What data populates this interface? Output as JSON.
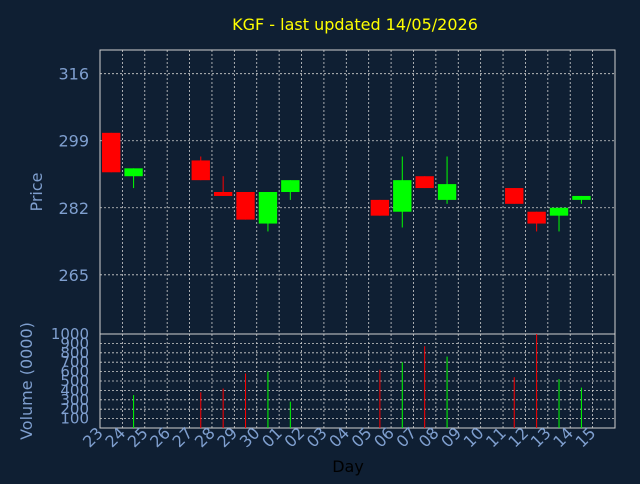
{
  "colors": {
    "background": "#0f1f33",
    "title": "#ffff00",
    "axis_text": "#7f9fcf",
    "day_label": "#000000",
    "grid": "#d0d0d0",
    "up": "#00ff00",
    "down": "#ff0000"
  },
  "chart_data": [
    {
      "type": "candlestick",
      "title": "KGF - last updated 14/05/2026",
      "ylabel": "Price",
      "ylim": [
        250,
        322
      ],
      "yticks": [
        265,
        282,
        299,
        316
      ],
      "grid": true,
      "x": [
        "23",
        "24",
        "25",
        "26",
        "27",
        "28",
        "29",
        "30",
        "01",
        "02",
        "03",
        "04",
        "05",
        "06",
        "07",
        "08",
        "09",
        "10",
        "11",
        "12",
        "13",
        "14",
        "15"
      ],
      "candles": [
        {
          "x": "23",
          "open": 301,
          "high": 301,
          "low": 291,
          "close": 291
        },
        {
          "x": "24",
          "open": 290,
          "high": 292,
          "low": 287,
          "close": 292
        },
        {
          "x": "27",
          "open": 294,
          "high": 295,
          "low": 289,
          "close": 289
        },
        {
          "x": "28",
          "open": 286,
          "high": 290,
          "low": 285,
          "close": 285
        },
        {
          "x": "29",
          "open": 286,
          "high": 286,
          "low": 279,
          "close": 279
        },
        {
          "x": "30",
          "open": 278,
          "high": 286,
          "low": 276,
          "close": 286
        },
        {
          "x": "01",
          "open": 286,
          "high": 289,
          "low": 284,
          "close": 289
        },
        {
          "x": "05",
          "open": 284,
          "high": 284,
          "low": 280,
          "close": 280
        },
        {
          "x": "06",
          "open": 281,
          "high": 295,
          "low": 277,
          "close": 289
        },
        {
          "x": "07",
          "open": 290,
          "high": 290,
          "low": 287,
          "close": 287
        },
        {
          "x": "08",
          "open": 284,
          "high": 295,
          "low": 283,
          "close": 288
        },
        {
          "x": "11",
          "open": 287,
          "high": 287,
          "low": 283,
          "close": 283
        },
        {
          "x": "12",
          "open": 281,
          "high": 281,
          "low": 276,
          "close": 278
        },
        {
          "x": "13",
          "open": 280,
          "high": 282,
          "low": 276,
          "close": 282
        },
        {
          "x": "14",
          "open": 284,
          "high": 285,
          "low": 283,
          "close": 285
        }
      ]
    },
    {
      "type": "bar",
      "ylabel": "Volume (0000)",
      "xlabel": "Day",
      "ylim": [
        0,
        1000
      ],
      "yticks": [
        100,
        200,
        300,
        400,
        500,
        600,
        700,
        800,
        900,
        1000
      ],
      "grid": true,
      "categories": [
        "24",
        "27",
        "28",
        "29",
        "30",
        "01",
        "05",
        "06",
        "07",
        "08",
        "11",
        "12",
        "13",
        "14"
      ],
      "values": [
        350,
        380,
        420,
        580,
        600,
        280,
        620,
        700,
        870,
        760,
        540,
        1000,
        520,
        430
      ],
      "direction": [
        "up",
        "down",
        "down",
        "down",
        "up",
        "up",
        "down",
        "up",
        "down",
        "up",
        "down",
        "down",
        "up",
        "up"
      ]
    }
  ]
}
